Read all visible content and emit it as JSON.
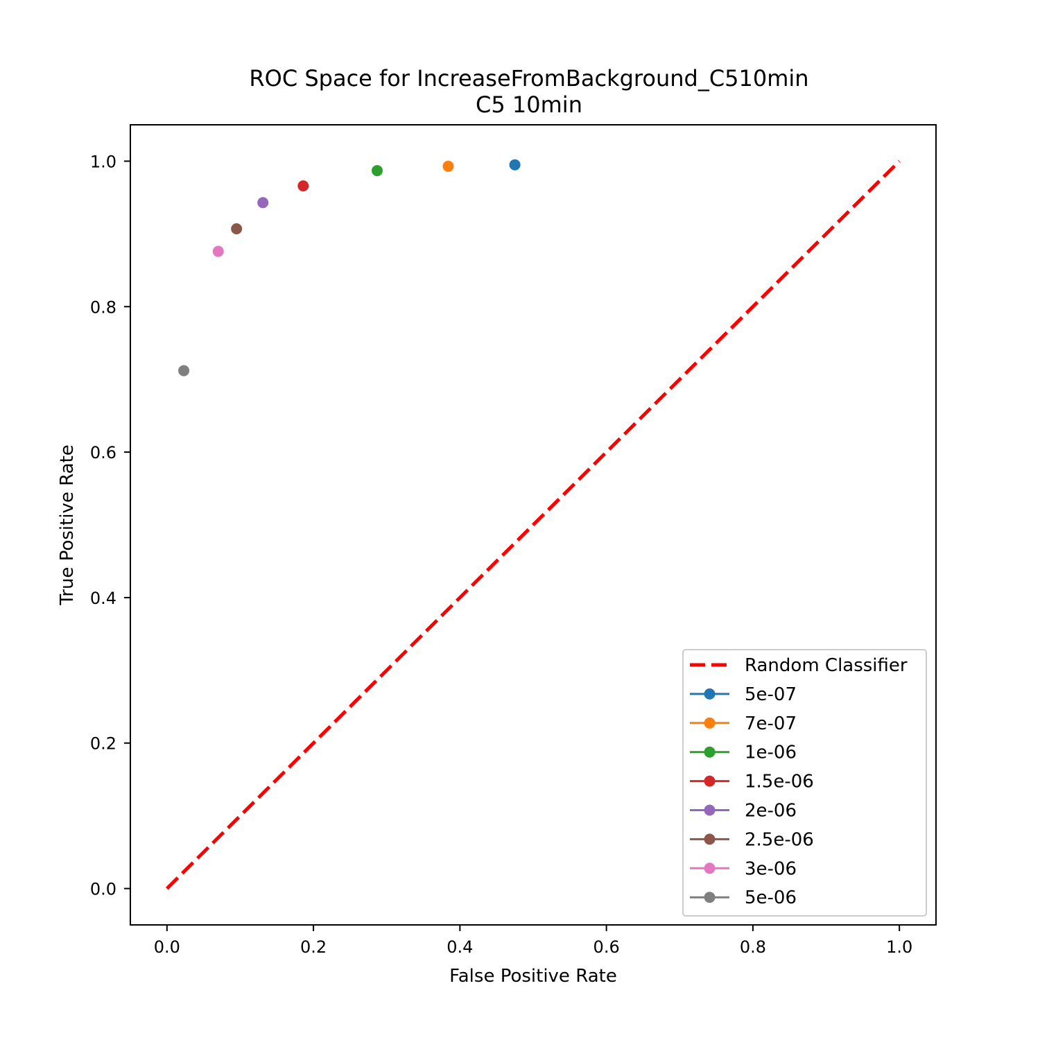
{
  "chart_data": {
    "type": "scatter",
    "title": "ROC Space for IncreaseFromBackground_C510min",
    "subtitle": "C5 10min",
    "xlabel": "False Positive Rate",
    "ylabel": "True Positive Rate",
    "xlim": [
      -0.05,
      1.05
    ],
    "ylim": [
      -0.05,
      1.05
    ],
    "xticks": [
      "0.0",
      "0.2",
      "0.4",
      "0.6",
      "0.8",
      "1.0"
    ],
    "yticks": [
      "0.0",
      "0.2",
      "0.4",
      "0.6",
      "0.8",
      "1.0"
    ],
    "grid": false,
    "legend_position": "lower-right",
    "reference_line": {
      "name": "Random Classifier",
      "x": [
        0,
        1
      ],
      "y": [
        0,
        1
      ],
      "color": "#ff0000",
      "style": "dashed"
    },
    "series": [
      {
        "name": "5e-07",
        "x": 0.475,
        "y": 0.995,
        "color": "#1f77b4"
      },
      {
        "name": "7e-07",
        "x": 0.384,
        "y": 0.993,
        "color": "#ff7f0e"
      },
      {
        "name": "1e-06",
        "x": 0.287,
        "y": 0.987,
        "color": "#2ca02c"
      },
      {
        "name": "1.5e-06",
        "x": 0.186,
        "y": 0.966,
        "color": "#d62728"
      },
      {
        "name": "2e-06",
        "x": 0.131,
        "y": 0.943,
        "color": "#9467bd"
      },
      {
        "name": "2.5e-06",
        "x": 0.095,
        "y": 0.907,
        "color": "#8c564b"
      },
      {
        "name": "3e-06",
        "x": 0.07,
        "y": 0.876,
        "color": "#e377c2"
      },
      {
        "name": "5e-06",
        "x": 0.023,
        "y": 0.712,
        "color": "#7f7f7f"
      }
    ]
  }
}
